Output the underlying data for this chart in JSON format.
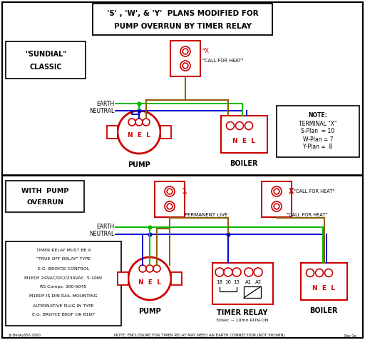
{
  "title_line1": "'S' , 'W', & 'Y'  PLANS MODIFIED FOR",
  "title_line2": "PUMP OVERRUN BY TIMER RELAY",
  "bg_color": "#ffffff",
  "red": "#cc0000",
  "green": "#00bb00",
  "blue": "#0000cc",
  "brown": "#8B5A00",
  "black": "#000000",
  "note1_text": [
    "NOTE:",
    "TERMINAL \"X\"",
    "S-Plan  = 10",
    "W-Plan = 7",
    "Y-Plan =  8"
  ],
  "note2_text": [
    "TIMER RELAY MUST BE A",
    "\"TRUE OFF DELAY\" TYPE",
    "E.G. BROYCE CONTROL",
    "M1EDF 24VAC/DC//230VAC .5-10MI",
    "RS Comps. 300-6045",
    "M1EDF IS DIN RAIL MOUNTING",
    "ALTERNATIVE PLUG-IN TYPE",
    "E.G. BROYCE B8DF OR B1DF"
  ],
  "bottom_note": "NOTE: ENCLOSURE FOR TIMER RELAY MAY NEED AN EARTH CONNECTION (NOT SHOWN)"
}
